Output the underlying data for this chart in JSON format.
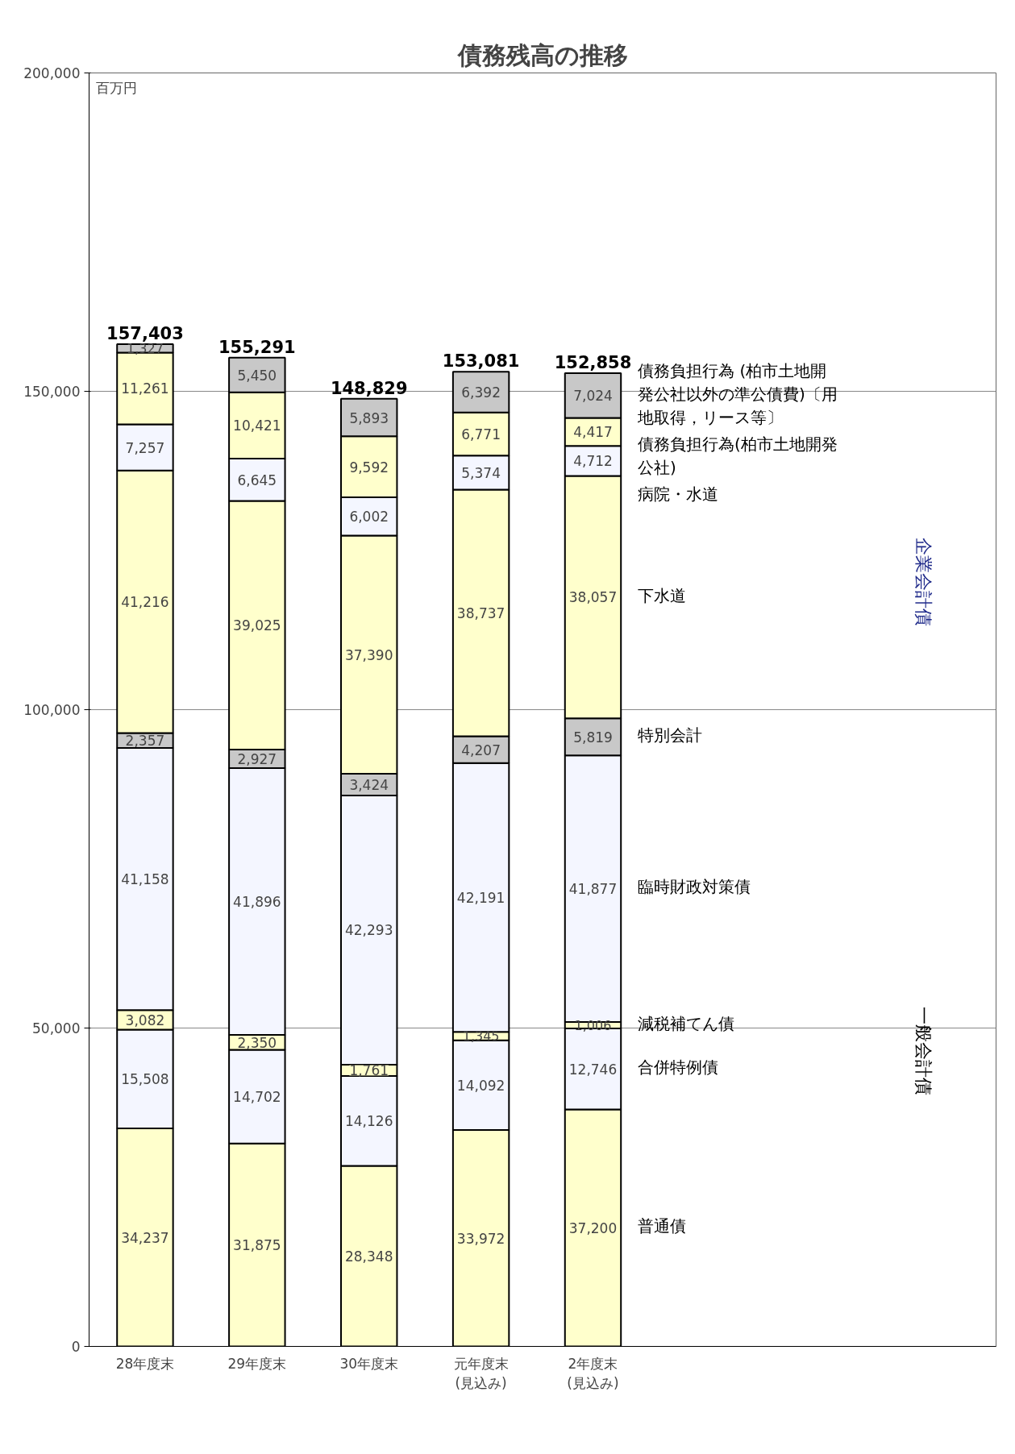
{
  "chart_data": {
    "type": "bar",
    "title": "債務残高の推移",
    "ylabel": "百万円",
    "categories": [
      "28年度末",
      "29年度末",
      "30年度末",
      "元年度末\n(見込み)",
      "2年度末\n(見込み)"
    ],
    "stacked": true,
    "grid": "y",
    "legend": "right",
    "ylim": [
      0,
      200000
    ],
    "yticks": [
      {
        "value": 0,
        "label": "0"
      },
      {
        "value": 50000,
        "label": "50,000"
      },
      {
        "value": 100000,
        "label": "100,000"
      },
      {
        "value": 150000,
        "label": "150,000"
      },
      {
        "value": 200000,
        "label": "200,000"
      }
    ],
    "totals": [
      "157,403",
      "155,291",
      "148,829",
      "153,081",
      "152,858"
    ],
    "series": [
      {
        "name": "普通債",
        "color": "#ffffcc",
        "values": [
          34237,
          31875,
          28348,
          33972,
          37200
        ],
        "value_labels": [
          "34,237",
          "31,875",
          "28,348",
          "33,972",
          "37,200"
        ]
      },
      {
        "name": "合併特例債",
        "color": "#f4f6ff",
        "values": [
          15508,
          14702,
          14126,
          14092,
          12746
        ],
        "value_labels": [
          "15,508",
          "14,702",
          "14,126",
          "14,092",
          "12,746"
        ]
      },
      {
        "name": "減税補てん債",
        "color": "#ffffcc",
        "values": [
          3082,
          2350,
          1761,
          1345,
          1006
        ],
        "value_labels": [
          "3,082",
          "2,350",
          "1,761",
          "1,345",
          "1,006"
        ]
      },
      {
        "name": "臨時財政対策債",
        "color": "#f4f6ff",
        "values": [
          41158,
          41896,
          42293,
          42191,
          41877
        ],
        "value_labels": [
          "41,158",
          "41,896",
          "42,293",
          "42,191",
          "41,877"
        ]
      },
      {
        "name": "特別会計",
        "color": "#c8c8c8",
        "values": [
          2357,
          2927,
          3424,
          4207,
          5819
        ],
        "value_labels": [
          "2,357",
          "2,927",
          "3,424",
          "4,207",
          "5,819"
        ]
      },
      {
        "name": "下水道",
        "color": "#ffffcc",
        "values": [
          41216,
          39025,
          37390,
          38737,
          38057
        ],
        "value_labels": [
          "41,216",
          "39,025",
          "37,390",
          "38,737",
          "38,057"
        ]
      },
      {
        "name": "病院・水道",
        "color": "#f4f6ff",
        "values": [
          7257,
          6645,
          6002,
          5374,
          4712
        ],
        "value_labels": [
          "7,257",
          "6,645",
          "6,002",
          "5,374",
          "4,712"
        ]
      },
      {
        "name": "債務負担行為(柏市土地開発公社)",
        "color": "#ffffcc",
        "values": [
          11261,
          10421,
          9592,
          6771,
          4417
        ],
        "value_labels": [
          "11,261",
          "10,421",
          "9,592",
          "6,771",
          "4,417"
        ]
      },
      {
        "name": "債務負担行為 (柏市土地開発公社以外の準公債費)〔用地取得，リース等〕",
        "color": "#c8c8c8",
        "values": [
          1327,
          5450,
          5893,
          6392,
          7024
        ],
        "value_labels": [
          "1,327",
          "5,450",
          "5,893",
          "6,392",
          "7,024"
        ]
      }
    ],
    "annotations": [
      "企業会計債",
      "一般会計債"
    ]
  }
}
